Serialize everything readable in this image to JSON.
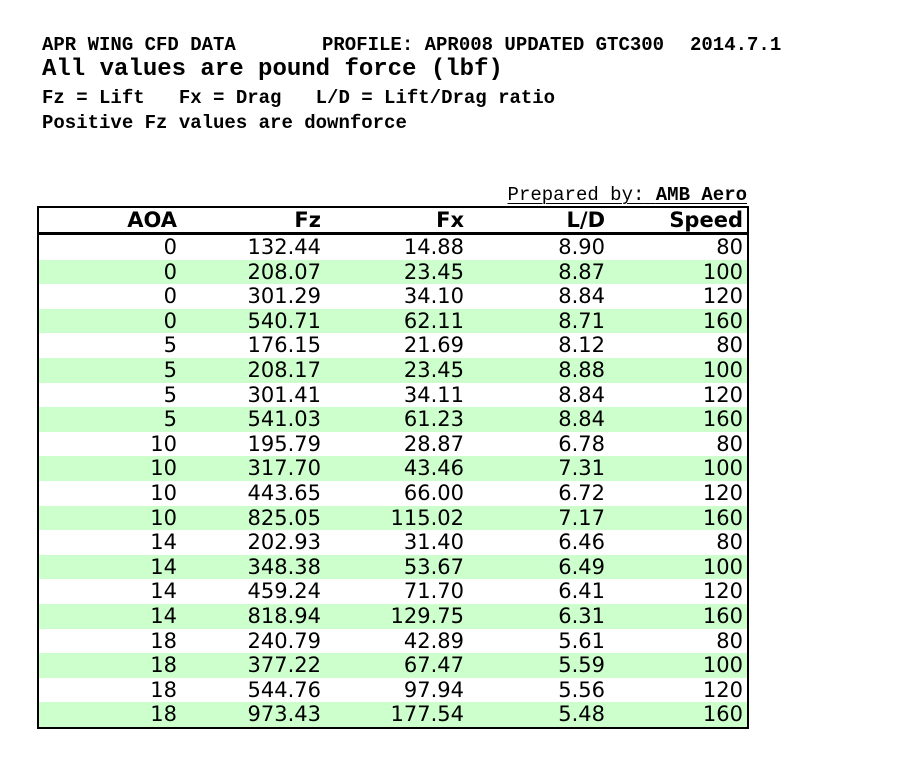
{
  "colors": {
    "row_stripe_green": "#CCFFCC",
    "table_border": "#000000",
    "text": "#000000",
    "page_bg": "#FFFFFF"
  },
  "header": {
    "title": "APR WING CFD DATA",
    "profile": "PROFILE: APR008 UPDATED GTC300",
    "date": "2014.7.1",
    "units_note": "All values are pound force (lbf)",
    "legend": "Fz = Lift   Fx = Drag   L/D = Lift/Drag ratio",
    "downforce_note": "Positive Fz values are downforce"
  },
  "prepared_by": {
    "label": "Prepared by:",
    "value": "AMB Aero"
  },
  "table": {
    "columns": [
      "AOA",
      "Fz",
      "Fx",
      "L/D",
      "Speed"
    ],
    "rows": [
      [
        "0",
        "132.44",
        "14.88",
        "8.90",
        "80"
      ],
      [
        "0",
        "208.07",
        "23.45",
        "8.87",
        "100"
      ],
      [
        "0",
        "301.29",
        "34.10",
        "8.84",
        "120"
      ],
      [
        "0",
        "540.71",
        "62.11",
        "8.71",
        "160"
      ],
      [
        "5",
        "176.15",
        "21.69",
        "8.12",
        "80"
      ],
      [
        "5",
        "208.17",
        "23.45",
        "8.88",
        "100"
      ],
      [
        "5",
        "301.41",
        "34.11",
        "8.84",
        "120"
      ],
      [
        "5",
        "541.03",
        "61.23",
        "8.84",
        "160"
      ],
      [
        "10",
        "195.79",
        "28.87",
        "6.78",
        "80"
      ],
      [
        "10",
        "317.70",
        "43.46",
        "7.31",
        "100"
      ],
      [
        "10",
        "443.65",
        "66.00",
        "6.72",
        "120"
      ],
      [
        "10",
        "825.05",
        "115.02",
        "7.17",
        "160"
      ],
      [
        "14",
        "202.93",
        "31.40",
        "6.46",
        "80"
      ],
      [
        "14",
        "348.38",
        "53.67",
        "6.49",
        "100"
      ],
      [
        "14",
        "459.24",
        "71.70",
        "6.41",
        "120"
      ],
      [
        "14",
        "818.94",
        "129.75",
        "6.31",
        "160"
      ],
      [
        "18",
        "240.79",
        "42.89",
        "5.61",
        "80"
      ],
      [
        "18",
        "377.22",
        "67.47",
        "5.59",
        "100"
      ],
      [
        "18",
        "544.76",
        "97.94",
        "5.56",
        "120"
      ],
      [
        "18",
        "973.43",
        "177.54",
        "5.48",
        "160"
      ]
    ]
  }
}
